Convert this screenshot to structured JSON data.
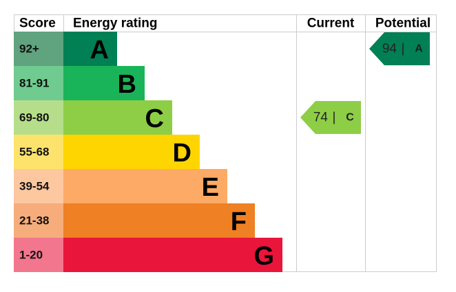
{
  "header": {
    "score": "Score",
    "rating": "Energy rating",
    "current": "Current",
    "potential": "Potential"
  },
  "bands": [
    {
      "score": "92+",
      "letter": "A"
    },
    {
      "score": "81-91",
      "letter": "B"
    },
    {
      "score": "69-80",
      "letter": "C"
    },
    {
      "score": "55-68",
      "letter": "D"
    },
    {
      "score": "39-54",
      "letter": "E"
    },
    {
      "score": "21-38",
      "letter": "F"
    },
    {
      "score": "1-20",
      "letter": "G"
    }
  ],
  "current": {
    "value": 74,
    "letter": "C"
  },
  "potential": {
    "value": 94,
    "letter": "A"
  }
}
